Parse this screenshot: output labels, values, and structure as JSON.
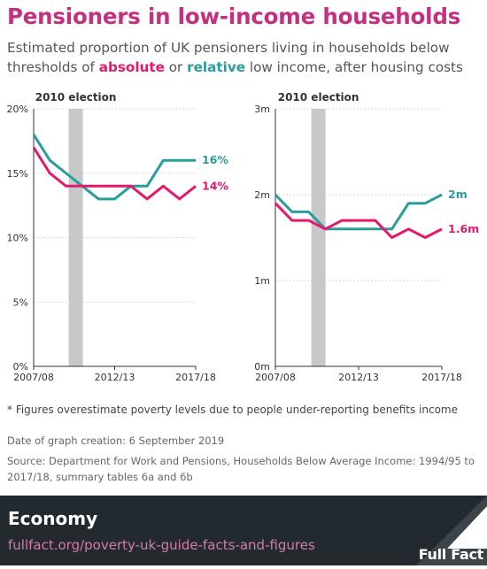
{
  "title": "Pensioners in low-income households",
  "subtitle": {
    "before": "Estimated proportion of UK pensioners living in households below thresholds of ",
    "absolute": "absolute",
    "middle": " or ",
    "relative": "relative",
    "after": " low income, after housing costs"
  },
  "colors": {
    "absolute": "#e6186c",
    "relative": "#2a9d9b",
    "title": "#c42f80",
    "footer": "#222a30"
  },
  "chart_data": [
    {
      "type": "line",
      "annotation": "2010 election",
      "x": [
        "2007/08",
        "2008/09",
        "2009/10",
        "2010/11",
        "2011/12",
        "2012/13",
        "2013/14",
        "2014/15",
        "2015/16",
        "2016/17",
        "2017/18"
      ],
      "x_tick_labels": [
        "2007/08",
        "2012/13",
        "2017/18"
      ],
      "y_tick_labels": [
        "0%",
        "5%",
        "10%",
        "15%",
        "20%"
      ],
      "ylim": [
        0,
        20
      ],
      "shaded_x": [
        "2009/10",
        "2010/11"
      ],
      "series": [
        {
          "key": "relative",
          "values": [
            18,
            16,
            15,
            14,
            13,
            13,
            14,
            14,
            16,
            16,
            16
          ],
          "end_label": "16%"
        },
        {
          "key": "absolute",
          "values": [
            17,
            15,
            14,
            14,
            14,
            14,
            14,
            13,
            14,
            13,
            14
          ],
          "end_label": "14%"
        }
      ]
    },
    {
      "type": "line",
      "annotation": "2010 election",
      "x": [
        "2007/08",
        "2008/09",
        "2009/10",
        "2010/11",
        "2011/12",
        "2012/13",
        "2013/14",
        "2014/15",
        "2015/16",
        "2016/17",
        "2017/18"
      ],
      "x_tick_labels": [
        "2007/08",
        "2012/13",
        "2017/18"
      ],
      "y_tick_labels": [
        "0m",
        "1m",
        "2m",
        "3m"
      ],
      "ylim": [
        0,
        3
      ],
      "shaded_x": [
        "2009/10",
        "2010/11"
      ],
      "series": [
        {
          "key": "relative",
          "values": [
            2.0,
            1.8,
            1.8,
            1.6,
            1.6,
            1.6,
            1.6,
            1.6,
            1.9,
            1.9,
            2.0
          ],
          "end_label": "2m"
        },
        {
          "key": "absolute",
          "values": [
            1.9,
            1.7,
            1.7,
            1.6,
            1.7,
            1.7,
            1.7,
            1.5,
            1.6,
            1.5,
            1.6
          ],
          "end_label": "1.6m"
        }
      ]
    }
  ],
  "footnote": "* Figures overestimate poverty levels due to people under-reporting benefits income",
  "date_line": "Date of graph creation: 6 September 2019",
  "source_line": "Source: Department for Work and Pensions, Households Below Average Income: 1994/95 to 2017/18, summary tables 6a and 6b",
  "footer": {
    "section": "Economy",
    "link": "fullfact.org/poverty-uk-guide-facts-and-figures",
    "logo": "Full Fact"
  }
}
